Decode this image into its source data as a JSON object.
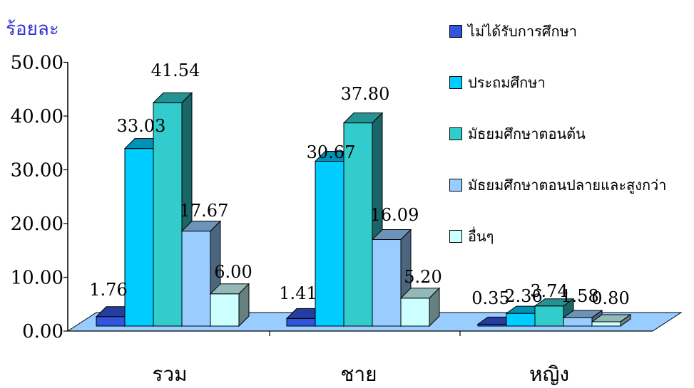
{
  "chart_data": {
    "type": "bar",
    "ylabel": "ร้อยละ",
    "ylim": [
      0,
      50
    ],
    "yticks": [
      "0.00",
      "10.00",
      "20.00",
      "30.00",
      "40.00",
      "50.00"
    ],
    "categories": [
      "รวม",
      "ชาย",
      "หญิง"
    ],
    "legend_position": "right",
    "series": [
      {
        "name": "ไม่ได้รับการศึกษา",
        "color": "#3355dd",
        "values": [
          1.76,
          1.41,
          0.35
        ],
        "labels": [
          "1.76",
          "1.41",
          "0.35"
        ]
      },
      {
        "name": "ประถมศึกษา",
        "color": "#00ccff",
        "values": [
          33.03,
          30.67,
          2.36
        ],
        "labels": [
          "33.03",
          "30.67",
          "2.36"
        ]
      },
      {
        "name": "มัธยมศึกษาตอนต้น",
        "color": "#33cccc",
        "values": [
          41.54,
          37.8,
          3.74
        ],
        "labels": [
          "41.54",
          "37.80",
          "3.74"
        ]
      },
      {
        "name": "มัธยมศึกษาตอนปลายและสูงกว่า",
        "color": "#99ccff",
        "values": [
          17.67,
          16.09,
          1.58
        ],
        "labels": [
          "17.67",
          "16.09",
          "1.58"
        ]
      },
      {
        "name": "อื่นๆ",
        "color": "#ccffff",
        "values": [
          6.0,
          5.2,
          0.8
        ],
        "labels": [
          "6.00",
          "5.20",
          "0.80"
        ]
      }
    ],
    "floor_color": "#99ccff"
  }
}
